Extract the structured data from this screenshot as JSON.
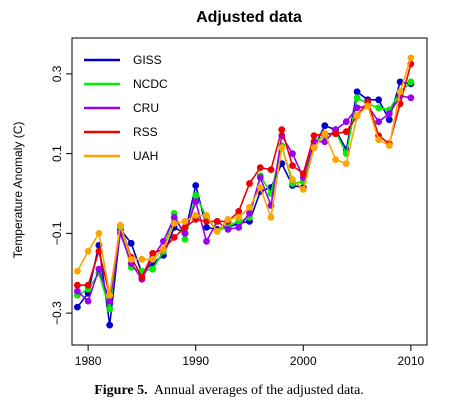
{
  "chart_data": {
    "type": "line",
    "title": "Adjusted data",
    "xlabel": "",
    "ylabel": "Temperature Anomaly (C)",
    "xlim": [
      1978.5,
      2011.5
    ],
    "ylim": [
      -0.38,
      0.39
    ],
    "xticks": [
      1980,
      1990,
      2000,
      2010
    ],
    "yticks": [
      -0.3,
      -0.1,
      0.1,
      0.3
    ],
    "ytick_labels": [
      "−0.3",
      "−0.1",
      "0.1",
      "0.3"
    ],
    "grid": false,
    "legend": "top-left",
    "x": [
      1979,
      1980,
      1981,
      1982,
      1983,
      1984,
      1985,
      1986,
      1987,
      1988,
      1989,
      1990,
      1991,
      1992,
      1993,
      1994,
      1995,
      1996,
      1997,
      1998,
      1999,
      2000,
      2001,
      2002,
      2003,
      2004,
      2005,
      2006,
      2007,
      2008,
      2009,
      2010
    ],
    "series": [
      {
        "name": "GISS",
        "color": "#0000cc",
        "values": [
          -0.285,
          -0.25,
          -0.13,
          -0.33,
          -0.09,
          -0.125,
          -0.2,
          -0.175,
          -0.155,
          -0.085,
          -0.1,
          0.02,
          -0.085,
          -0.09,
          -0.085,
          -0.075,
          -0.07,
          0.005,
          0.015,
          0.075,
          0.02,
          0.015,
          0.115,
          0.17,
          0.16,
          0.11,
          0.255,
          0.235,
          0.235,
          0.185,
          0.28,
          0.275
        ]
      },
      {
        "name": "NCDC",
        "color": "#00ee00",
        "values": [
          -0.255,
          -0.24,
          -0.2,
          -0.29,
          -0.085,
          -0.185,
          -0.195,
          -0.19,
          -0.145,
          -0.05,
          -0.115,
          -0.005,
          -0.06,
          -0.095,
          -0.08,
          -0.07,
          -0.06,
          0.045,
          0.0,
          0.12,
          0.025,
          0.03,
          0.13,
          0.145,
          0.155,
          0.1,
          0.24,
          0.225,
          0.215,
          0.21,
          0.255,
          0.28
        ]
      },
      {
        "name": "CRU",
        "color": "#9900ee",
        "values": [
          -0.245,
          -0.27,
          -0.19,
          -0.27,
          -0.1,
          -0.175,
          -0.215,
          -0.16,
          -0.12,
          -0.06,
          -0.1,
          -0.02,
          -0.12,
          -0.07,
          -0.09,
          -0.085,
          -0.05,
          0.04,
          -0.03,
          0.145,
          0.1,
          0.04,
          0.13,
          0.13,
          0.16,
          0.18,
          0.215,
          0.22,
          0.18,
          0.2,
          0.245,
          0.24
        ]
      },
      {
        "name": "RSS",
        "color": "#ee0000",
        "values": [
          -0.23,
          -0.23,
          -0.145,
          -0.255,
          -0.08,
          -0.16,
          -0.21,
          -0.15,
          -0.14,
          -0.11,
          -0.085,
          -0.065,
          -0.07,
          -0.07,
          -0.07,
          -0.045,
          0.025,
          0.065,
          0.06,
          0.16,
          0.07,
          0.05,
          0.145,
          0.15,
          0.15,
          0.155,
          0.195,
          0.23,
          0.145,
          0.125,
          0.225,
          0.325
        ]
      },
      {
        "name": "UAH",
        "color": "#ffa500",
        "values": [
          -0.195,
          -0.145,
          -0.1,
          -0.255,
          -0.08,
          -0.165,
          -0.165,
          -0.165,
          -0.14,
          -0.075,
          -0.07,
          -0.055,
          -0.055,
          -0.095,
          -0.065,
          -0.06,
          -0.035,
          0.015,
          -0.06,
          0.115,
          0.035,
          0.01,
          0.115,
          0.15,
          0.085,
          0.075,
          0.195,
          0.22,
          0.135,
          0.12,
          0.255,
          0.34
        ]
      }
    ]
  },
  "caption": {
    "label": "Figure 5.",
    "text": "Annual averages of the adjusted data."
  }
}
